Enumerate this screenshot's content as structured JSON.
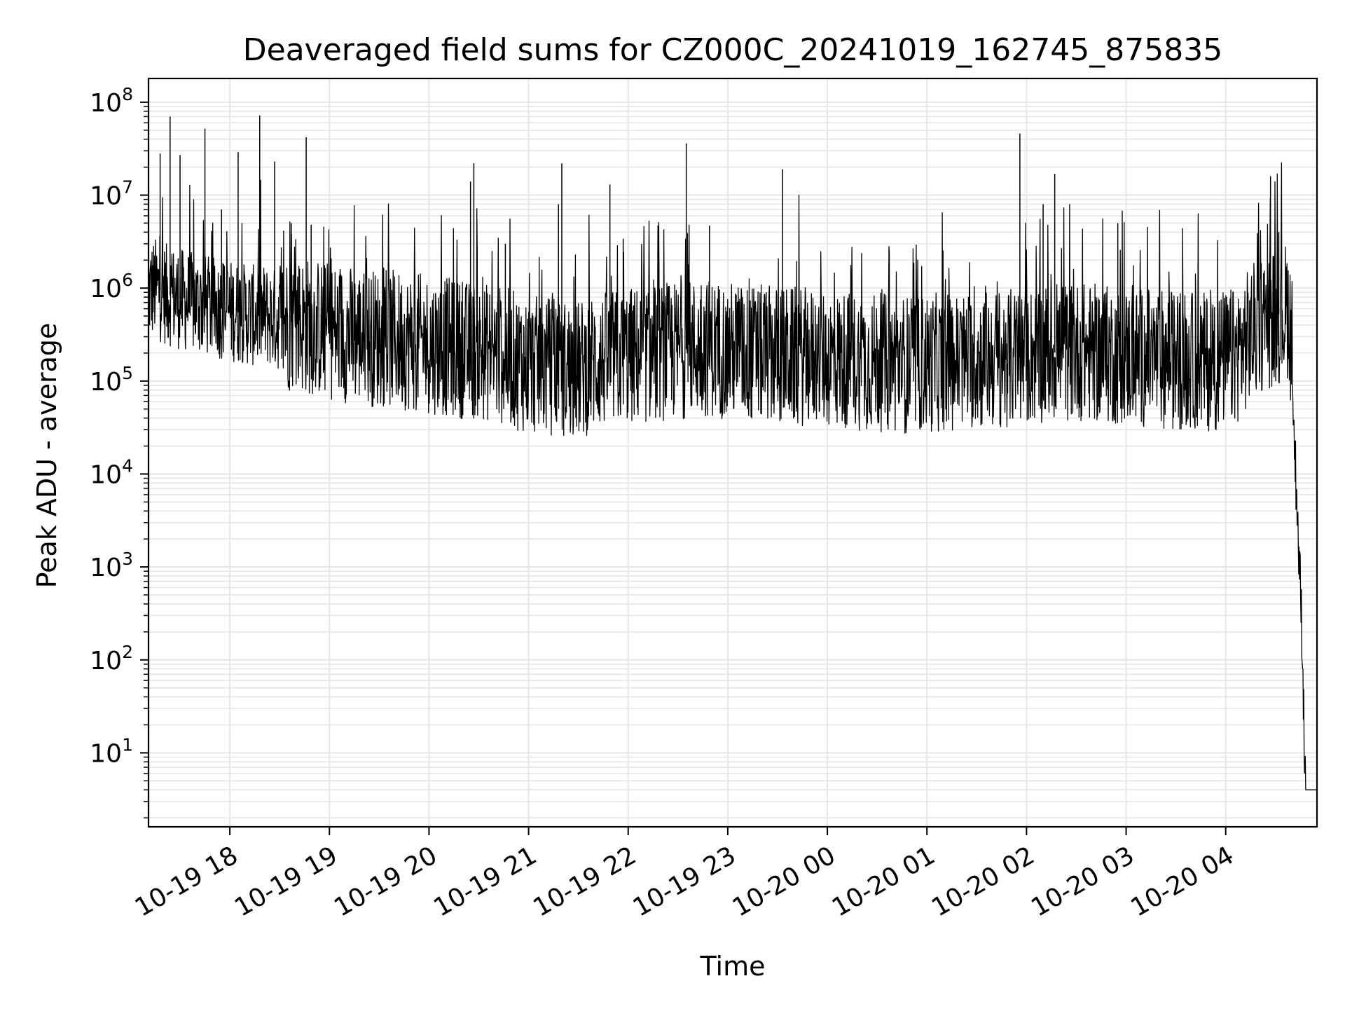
{
  "chart_data": {
    "type": "line",
    "title": "Deaveraged field sums for CZ000C_20241019_162745_875835",
    "xlabel": "Time",
    "ylabel": "Peak ADU - average",
    "y_scale": "log",
    "ylim": [
      1.6,
      180000000.0
    ],
    "xlim": [
      "2024-10-19 17:11",
      "2024-10-20 04:55"
    ],
    "grid": true,
    "line_color": "#000000",
    "grid_color": "#e6e6e6",
    "x_ticks": [
      {
        "label": "10-19 18",
        "t": "2024-10-19 18:00"
      },
      {
        "label": "10-19 19",
        "t": "2024-10-19 19:00"
      },
      {
        "label": "10-19 20",
        "t": "2024-10-19 20:00"
      },
      {
        "label": "10-19 21",
        "t": "2024-10-19 21:00"
      },
      {
        "label": "10-19 22",
        "t": "2024-10-19 22:00"
      },
      {
        "label": "10-19 23",
        "t": "2024-10-19 23:00"
      },
      {
        "label": "10-20 00",
        "t": "2024-10-20 00:00"
      },
      {
        "label": "10-20 01",
        "t": "2024-10-20 01:00"
      },
      {
        "label": "10-20 02",
        "t": "2024-10-20 02:00"
      },
      {
        "label": "10-20 03",
        "t": "2024-10-20 03:00"
      },
      {
        "label": "10-20 04",
        "t": "2024-10-20 04:00"
      }
    ],
    "y_ticks": [
      {
        "base": "10",
        "exp": "1",
        "value": 10
      },
      {
        "base": "10",
        "exp": "2",
        "value": 100
      },
      {
        "base": "10",
        "exp": "3",
        "value": 1000
      },
      {
        "base": "10",
        "exp": "4",
        "value": 10000
      },
      {
        "base": "10",
        "exp": "5",
        "value": 100000
      },
      {
        "base": "10",
        "exp": "6",
        "value": 1000000
      },
      {
        "base": "10",
        "exp": "7",
        "value": 10000000
      },
      {
        "base": "10",
        "exp": "8",
        "value": 100000000
      }
    ],
    "series": [
      {
        "x": [
          "2024-10-19 17:11",
          "2024-10-19 17:15",
          "2024-10-19 17:22",
          "2024-10-19 17:27",
          "2024-10-19 17:36",
          "2024-10-19 17:45",
          "2024-10-19 17:55",
          "2024-10-19 18:05",
          "2024-10-19 18:15",
          "2024-10-19 18:20",
          "2024-10-19 18:30",
          "2024-10-19 18:45",
          "2024-10-19 19:00",
          "2024-10-19 19:20",
          "2024-10-19 19:40",
          "2024-10-19 20:00",
          "2024-10-19 20:20",
          "2024-10-19 20:28",
          "2024-10-19 20:40",
          "2024-10-19 21:00",
          "2024-10-19 21:20",
          "2024-10-19 21:30",
          "2024-10-19 21:40",
          "2024-10-19 21:57",
          "2024-10-19 22:15",
          "2024-10-19 22:35",
          "2024-10-19 22:50",
          "2024-10-19 23:10",
          "2024-10-19 23:30",
          "2024-10-19 23:50",
          "2024-10-20 00:10",
          "2024-10-20 00:30",
          "2024-10-20 00:50",
          "2024-10-20 01:10",
          "2024-10-20 01:30",
          "2024-10-20 01:55",
          "2024-10-20 02:12",
          "2024-10-20 02:30",
          "2024-10-20 02:50",
          "2024-10-20 03:10",
          "2024-10-20 03:30",
          "2024-10-20 03:50",
          "2024-10-20 04:05",
          "2024-10-20 04:20",
          "2024-10-20 04:30",
          "2024-10-20 04:35",
          "2024-10-20 04:38",
          "2024-10-20 04:40",
          "2024-10-20 04:41",
          "2024-10-20 04:43",
          "2024-10-20 04:44",
          "2024-10-20 04:45",
          "2024-10-20 04:46",
          "2024-10-20 04:48",
          "2024-10-20 04:55"
        ],
        "y": [
          900000,
          1000000,
          850000,
          800000,
          700000,
          650000,
          600000,
          550000,
          500000,
          520000,
          450000,
          400000,
          350000,
          300000,
          280000,
          250000,
          220000,
          210000,
          200000,
          150000,
          140000,
          130000,
          160000,
          180000,
          200000,
          220000,
          230000,
          200000,
          190000,
          180000,
          170000,
          160000,
          150000,
          160000,
          170000,
          180000,
          200000,
          210000,
          190000,
          180000,
          170000,
          160000,
          180000,
          400000,
          500000,
          550000,
          600000,
          200000,
          30000,
          5000,
          1500,
          600,
          200,
          4,
          4
        ],
        "spikes": [
          {
            "x": "2024-10-19 17:18",
            "y": 28000000
          },
          {
            "x": "2024-10-19 17:24",
            "y": 70000000
          },
          {
            "x": "2024-10-19 17:30",
            "y": 27000000
          },
          {
            "x": "2024-10-19 17:45",
            "y": 52000000
          },
          {
            "x": "2024-10-19 17:55",
            "y": 7000000
          },
          {
            "x": "2024-10-19 18:05",
            "y": 29000000
          },
          {
            "x": "2024-10-19 18:18",
            "y": 72000000
          },
          {
            "x": "2024-10-19 18:27",
            "y": 23000000
          },
          {
            "x": "2024-10-19 18:37",
            "y": 5000000
          },
          {
            "x": "2024-10-19 18:46",
            "y": 42000000
          },
          {
            "x": "2024-10-19 18:49",
            "y": 4800000
          },
          {
            "x": "2024-10-19 20:25",
            "y": 14000000
          },
          {
            "x": "2024-10-19 20:27",
            "y": 22000000
          },
          {
            "x": "2024-10-19 20:46",
            "y": 3000000
          },
          {
            "x": "2024-10-19 21:18",
            "y": 8000000
          },
          {
            "x": "2024-10-19 21:20",
            "y": 22000000
          },
          {
            "x": "2024-10-19 21:49",
            "y": 13000000
          },
          {
            "x": "2024-10-19 21:57",
            "y": 3400000
          },
          {
            "x": "2024-10-19 22:35",
            "y": 36000000
          },
          {
            "x": "2024-10-19 22:49",
            "y": 4700000
          },
          {
            "x": "2024-10-19 23:33",
            "y": 19000000
          },
          {
            "x": "2024-10-20 01:56",
            "y": 46000000
          },
          {
            "x": "2024-10-20 02:10",
            "y": 8000000
          },
          {
            "x": "2024-10-20 02:17",
            "y": 17000000
          },
          {
            "x": "2024-10-20 02:55",
            "y": 5000000
          },
          {
            "x": "2024-10-20 04:27",
            "y": 16000000
          },
          {
            "x": "2024-10-20 04:32",
            "y": 4000000
          }
        ]
      }
    ]
  }
}
